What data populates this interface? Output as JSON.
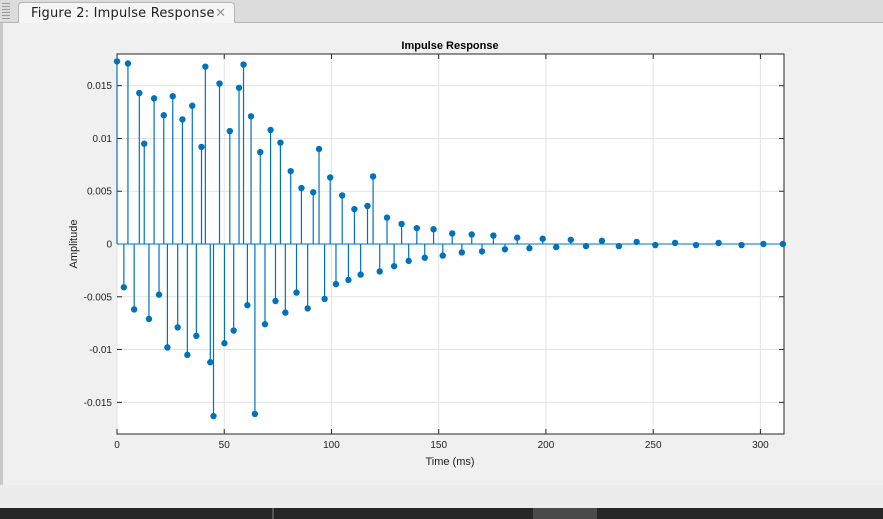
{
  "window": {
    "tab_label": "Figure 2: Impulse Response",
    "tab_close_icon": "close-icon"
  },
  "chart_data": {
    "type": "stem",
    "title": "Impulse Response",
    "xlabel": "Time (ms)",
    "ylabel": "Amplitude",
    "xlim": [
      0,
      311
    ],
    "ylim": [
      -0.018,
      0.018
    ],
    "xticks": [
      0,
      50,
      100,
      150,
      200,
      250,
      300
    ],
    "yticks": [
      -0.015,
      -0.01,
      -0.005,
      0,
      0.005,
      0.01,
      0.015
    ],
    "xtick_labels": [
      "0",
      "50",
      "100",
      "150",
      "200",
      "250",
      "300"
    ],
    "ytick_labels": [
      "-0.015",
      "-0.01",
      "-0.005",
      "0",
      "0.005",
      "0.01",
      "0.015"
    ],
    "grid": true,
    "series_color": "#0072BD",
    "series": [
      {
        "points": [
          [
            0.0,
            0.0173
          ],
          [
            3.2,
            -0.0041
          ],
          [
            5.1,
            0.0171
          ],
          [
            8.0,
            -0.0062
          ],
          [
            10.4,
            0.0143
          ],
          [
            12.7,
            0.0095
          ],
          [
            14.9,
            -0.0071
          ],
          [
            17.3,
            0.0138
          ],
          [
            19.6,
            -0.0048
          ],
          [
            21.8,
            0.0122
          ],
          [
            23.5,
            -0.0098
          ],
          [
            26.0,
            0.014
          ],
          [
            28.3,
            -0.0079
          ],
          [
            30.5,
            0.0118
          ],
          [
            32.8,
            -0.0105
          ],
          [
            35.1,
            0.0131
          ],
          [
            37.0,
            -0.0087
          ],
          [
            39.4,
            0.0092
          ],
          [
            41.2,
            0.0168
          ],
          [
            43.5,
            -0.0112
          ],
          [
            45.0,
            -0.0163
          ],
          [
            47.8,
            0.0152
          ],
          [
            50.1,
            -0.0094
          ],
          [
            52.6,
            0.0107
          ],
          [
            54.4,
            -0.0082
          ],
          [
            56.9,
            0.0148
          ],
          [
            59.0,
            0.017
          ],
          [
            60.8,
            -0.0058
          ],
          [
            62.5,
            0.0121
          ],
          [
            64.3,
            -0.0161
          ],
          [
            66.8,
            0.0087
          ],
          [
            69.0,
            -0.0076
          ],
          [
            71.6,
            0.0108
          ],
          [
            73.9,
            -0.0054
          ],
          [
            76.2,
            0.0096
          ],
          [
            78.5,
            -0.0065
          ],
          [
            81.0,
            0.0069
          ],
          [
            83.7,
            -0.0046
          ],
          [
            86.0,
            0.0053
          ],
          [
            88.9,
            -0.0061
          ],
          [
            91.5,
            0.0049
          ],
          [
            94.2,
            0.009
          ],
          [
            96.8,
            -0.0052
          ],
          [
            99.4,
            0.0063
          ],
          [
            102.1,
            -0.0038
          ],
          [
            105.0,
            0.0046
          ],
          [
            107.9,
            -0.0034
          ],
          [
            110.7,
            0.0033
          ],
          [
            113.6,
            -0.0029
          ],
          [
            116.8,
            0.0036
          ],
          [
            119.4,
            0.0064
          ],
          [
            122.5,
            -0.0026
          ],
          [
            125.9,
            0.0025
          ],
          [
            129.2,
            -0.0021
          ],
          [
            132.7,
            0.0019
          ],
          [
            136.0,
            -0.0016
          ],
          [
            139.8,
            0.0015
          ],
          [
            143.5,
            -0.0013
          ],
          [
            147.6,
            0.0014
          ],
          [
            151.9,
            -0.0011
          ],
          [
            156.3,
            0.001
          ],
          [
            160.8,
            -0.0008
          ],
          [
            165.4,
            0.0009
          ],
          [
            170.2,
            -0.0007
          ],
          [
            175.5,
            0.0008
          ],
          [
            180.9,
            -0.0005
          ],
          [
            186.6,
            0.0006
          ],
          [
            192.3,
            -0.0004
          ],
          [
            198.5,
            0.0005
          ],
          [
            204.8,
            -0.0003
          ],
          [
            211.6,
            0.0004
          ],
          [
            218.7,
            -0.0002
          ],
          [
            226.1,
            0.0003
          ],
          [
            234.0,
            -0.0002
          ],
          [
            242.3,
            0.0002
          ],
          [
            251.0,
            -0.0001
          ],
          [
            260.2,
            0.0001
          ],
          [
            270.0,
            -0.0001
          ],
          [
            280.5,
            0.0001
          ],
          [
            291.2,
            -0.0001
          ],
          [
            301.4,
            0.0
          ],
          [
            310.5,
            0.0
          ]
        ]
      }
    ]
  }
}
